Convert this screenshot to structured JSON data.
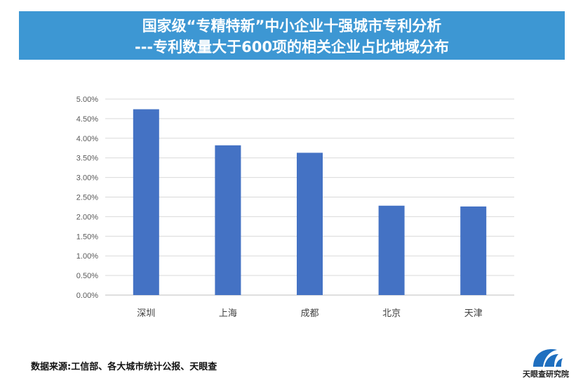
{
  "header": {
    "title_line1": "国家级“专精特新”中小企业十强城市专利分析",
    "title_line2": "---专利数量大于600项的相关企业占比地域分布",
    "banner_color": "#3d97d3"
  },
  "chart_data": {
    "type": "bar",
    "categories": [
      "深圳",
      "上海",
      "成都",
      "北京",
      "天津"
    ],
    "values": [
      4.74,
      3.82,
      3.63,
      2.28,
      2.26
    ],
    "value_unit": "%",
    "ylim": [
      0,
      5
    ],
    "yticks": [
      "0.00%",
      "0.50%",
      "1.00%",
      "1.50%",
      "2.00%",
      "2.50%",
      "3.00%",
      "3.50%",
      "4.00%",
      "4.50%",
      "5.00%"
    ],
    "grid": true,
    "bar_color": "#4472c4",
    "title": "",
    "xlabel": "",
    "ylabel": ""
  },
  "footer": {
    "source": "数据来源:工信部、各大城市统计公报、天眼查"
  },
  "logo": {
    "text": "天眼查研究院",
    "icon": "tianyancha-logo-icon",
    "color": "#1f6fbf"
  }
}
